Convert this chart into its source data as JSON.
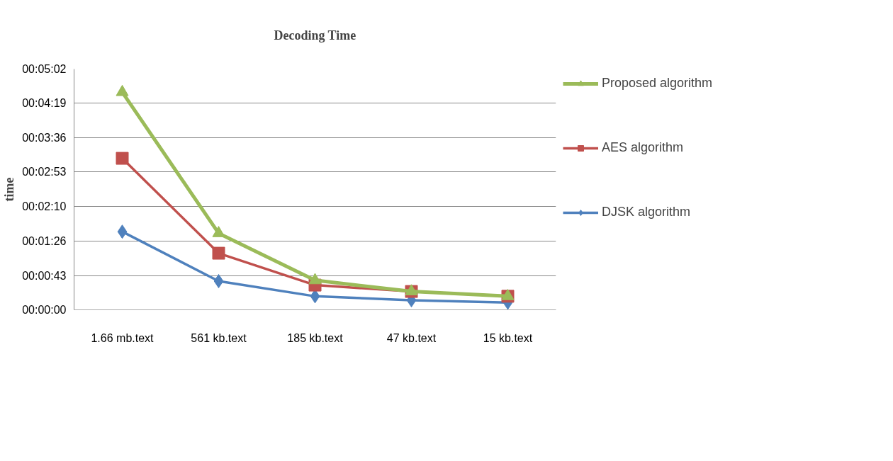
{
  "chart_data": {
    "type": "line",
    "title": "Decoding Time",
    "ylabel": "time",
    "categories": [
      "1.66 mb.text",
      "561 kb.text",
      "185 kb.text",
      "47 kb.text",
      "15 kb.text"
    ],
    "series": [
      {
        "name": "Proposed algorithm",
        "color": "#9bbb59",
        "marker": "triangle",
        "values": [
          273,
          96,
          37,
          23,
          17
        ]
      },
      {
        "name": "AES algorithm",
        "color": "#c0504d",
        "marker": "square",
        "values": [
          190,
          71,
          31,
          23,
          17
        ]
      },
      {
        "name": "DJSK algorithm",
        "color": "#4f81bd",
        "marker": "diamond",
        "values": [
          98,
          36,
          17,
          12,
          9
        ]
      }
    ],
    "ylim": [
      0,
      302
    ],
    "yticks": [
      {
        "value": 0,
        "label": "00:00:00"
      },
      {
        "value": 43,
        "label": "00:00:43"
      },
      {
        "value": 86,
        "label": "00:01:26"
      },
      {
        "value": 130,
        "label": "00:02:10"
      },
      {
        "value": 173,
        "label": "00:02:53"
      },
      {
        "value": 216,
        "label": "00:03:36"
      },
      {
        "value": 259,
        "label": "00:04:19"
      },
      {
        "value": 302,
        "label": "00:05:02"
      }
    ],
    "grid": "y",
    "legend": "right",
    "line_style": "solid"
  }
}
